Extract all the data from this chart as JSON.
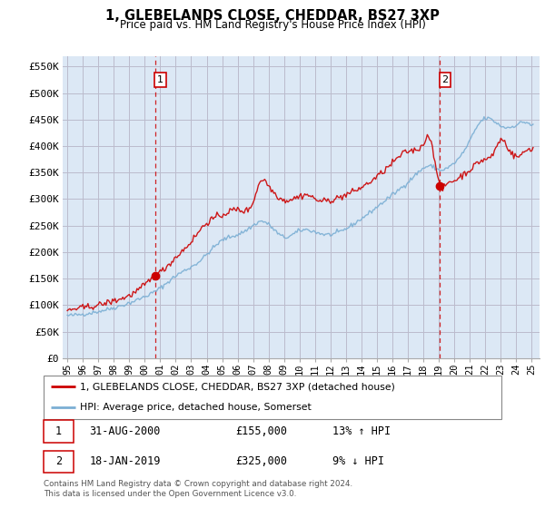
{
  "title": "1, GLEBELANDS CLOSE, CHEDDAR, BS27 3XP",
  "subtitle": "Price paid vs. HM Land Registry's House Price Index (HPI)",
  "ylabel_ticks": [
    "£0",
    "£50K",
    "£100K",
    "£150K",
    "£200K",
    "£250K",
    "£300K",
    "£350K",
    "£400K",
    "£450K",
    "£500K",
    "£550K"
  ],
  "ytick_values": [
    0,
    50000,
    100000,
    150000,
    200000,
    250000,
    300000,
    350000,
    400000,
    450000,
    500000,
    550000
  ],
  "ylim": [
    0,
    570000
  ],
  "xlim_start": 1995.0,
  "xlim_end": 2025.5,
  "sale1_x": 2000.667,
  "sale1_y": 155000,
  "sale1_label": "1",
  "sale2_x": 2019.04,
  "sale2_y": 325000,
  "sale2_label": "2",
  "vline1_x": 2000.667,
  "vline2_x": 2019.04,
  "red_color": "#cc0000",
  "blue_color": "#7bafd4",
  "vline_color": "#cc0000",
  "grid_color": "#bbbbcc",
  "background_color": "#dce8f5",
  "legend_label_red": "1, GLEBELANDS CLOSE, CHEDDAR, BS27 3XP (detached house)",
  "legend_label_blue": "HPI: Average price, detached house, Somerset",
  "note1_num": "1",
  "note1_date": "31-AUG-2000",
  "note1_price": "£155,000",
  "note1_hpi": "13% ↑ HPI",
  "note2_num": "2",
  "note2_date": "18-JAN-2019",
  "note2_price": "£325,000",
  "note2_hpi": "9% ↓ HPI",
  "footer": "Contains HM Land Registry data © Crown copyright and database right 2024.\nThis data is licensed under the Open Government Licence v3.0.",
  "xtick_labels": [
    "95",
    "96",
    "97",
    "98",
    "99",
    "00",
    "01",
    "02",
    "03",
    "04",
    "05",
    "06",
    "07",
    "08",
    "09",
    "10",
    "11",
    "12",
    "13",
    "14",
    "15",
    "16",
    "17",
    "18",
    "19",
    "20",
    "21",
    "22",
    "23",
    "24",
    "25"
  ],
  "xtick_years": [
    1995,
    1996,
    1997,
    1998,
    1999,
    2000,
    2001,
    2002,
    2003,
    2004,
    2005,
    2006,
    2007,
    2008,
    2009,
    2010,
    2011,
    2012,
    2013,
    2014,
    2015,
    2016,
    2017,
    2018,
    2019,
    2020,
    2021,
    2022,
    2023,
    2024,
    2025
  ]
}
